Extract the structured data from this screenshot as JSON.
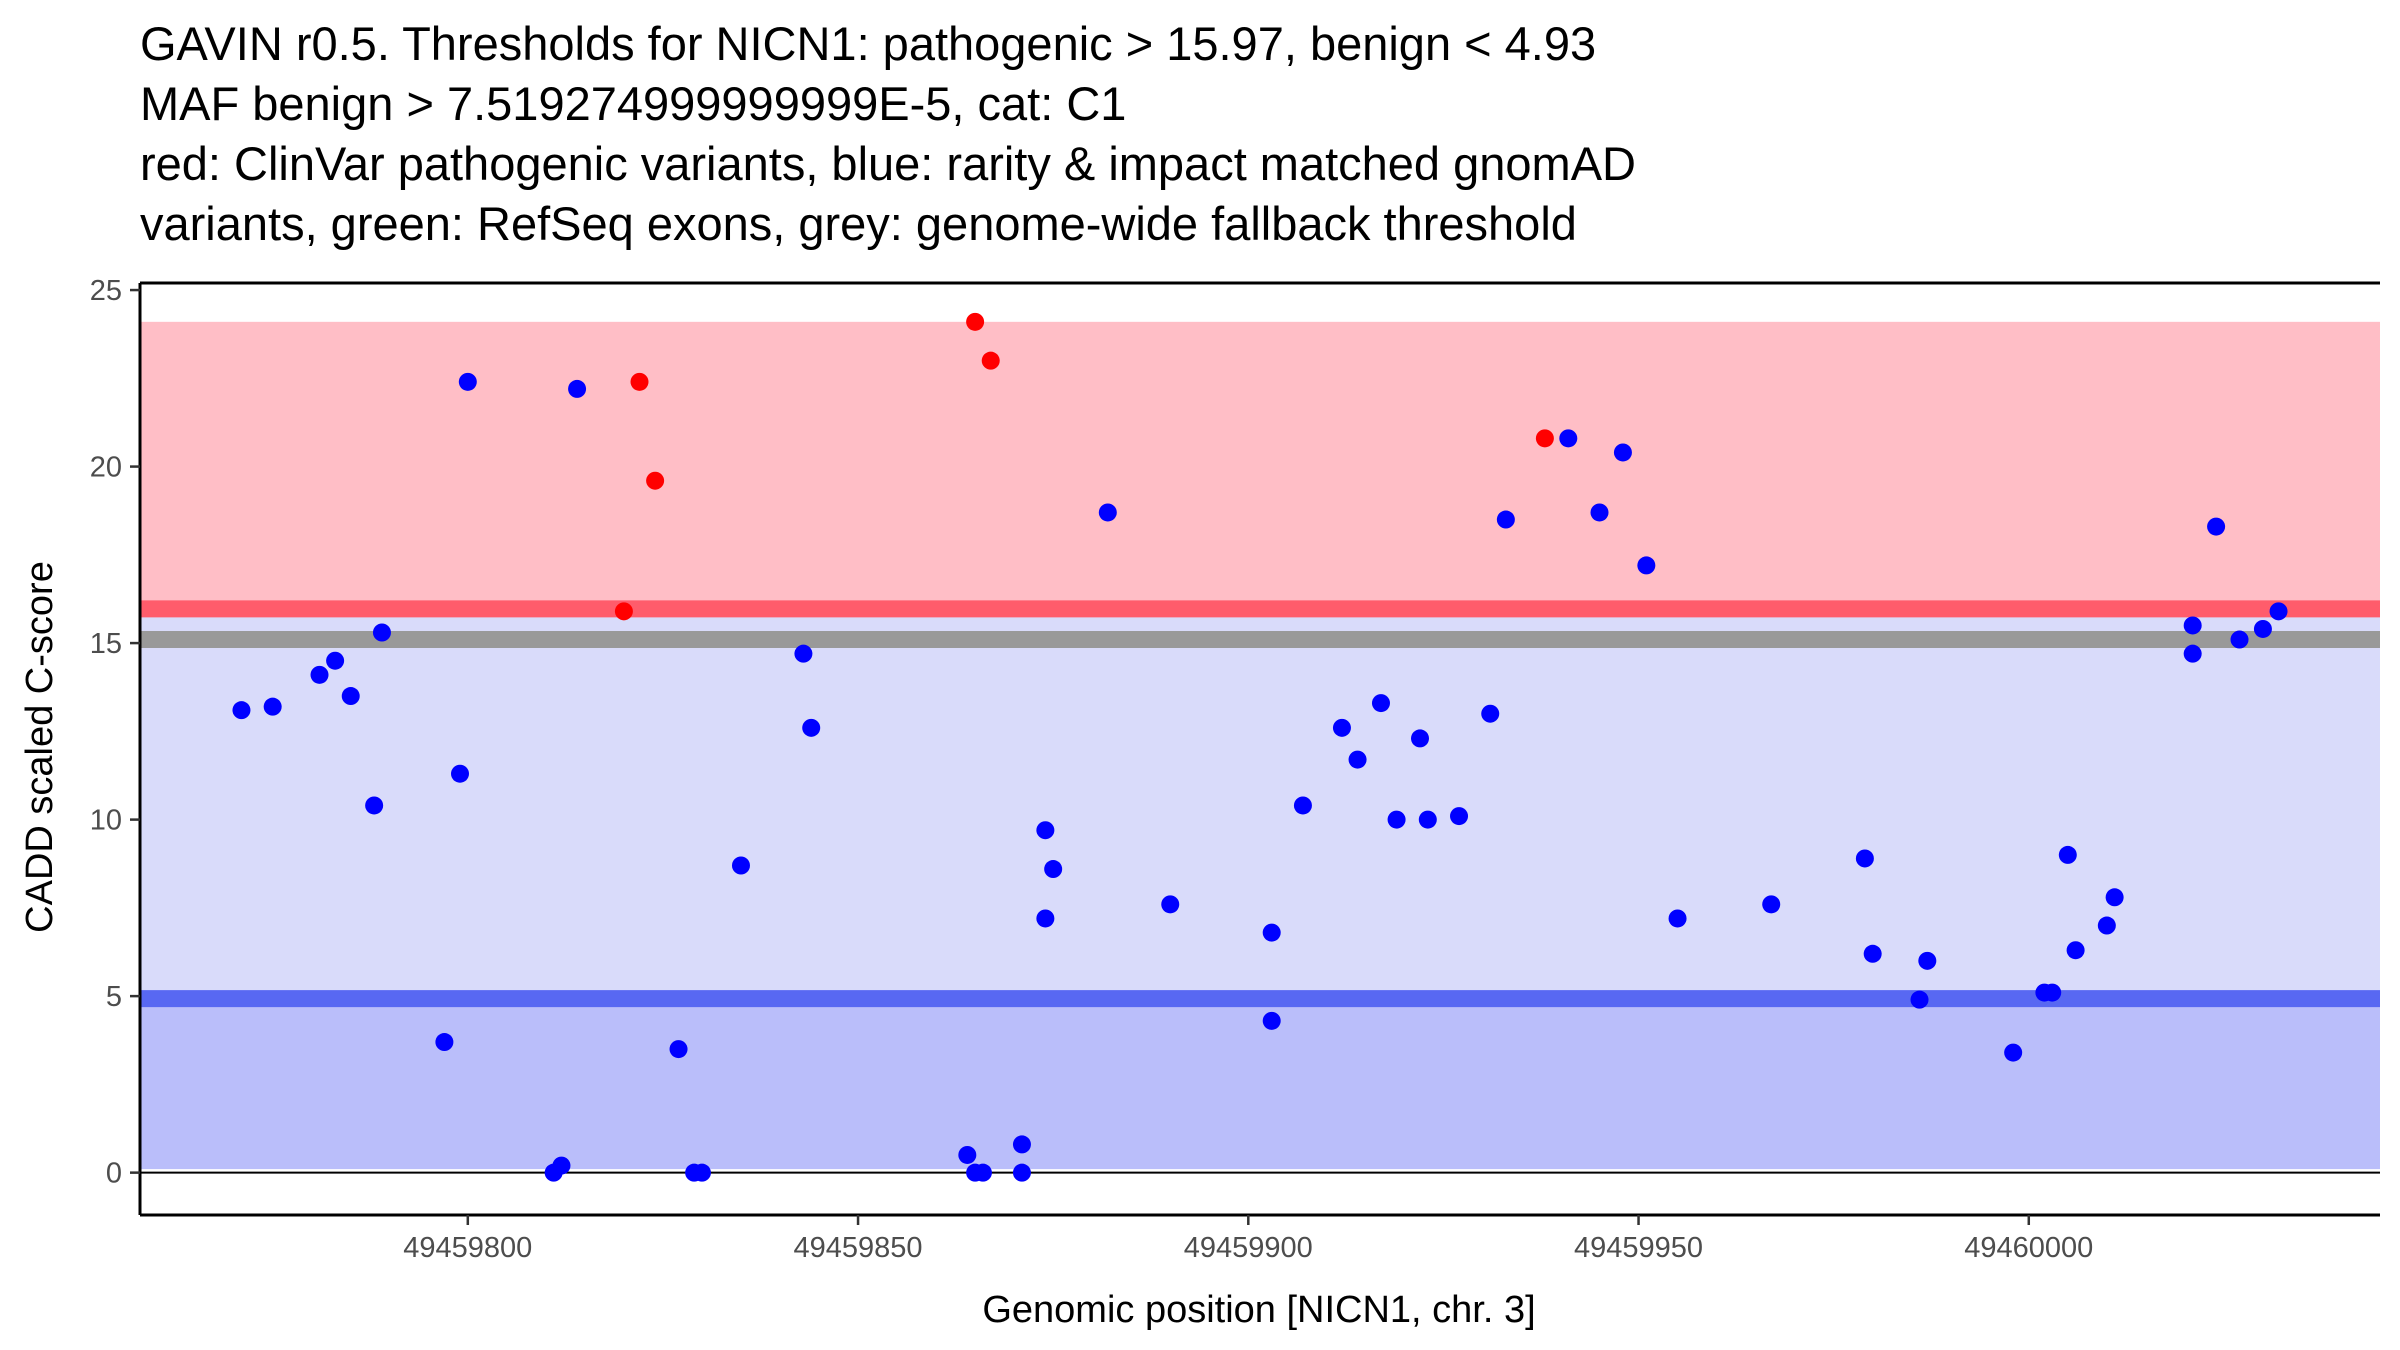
{
  "chart_data": {
    "type": "scatter",
    "title_lines": [
      "GAVIN r0.5. Thresholds for NICN1: pathogenic > 15.97, benign < 4.93",
      "MAF benign > 7.519274999999999E-5, cat: C1",
      "red: ClinVar pathogenic variants, blue: rarity & impact matched gnomAD",
      "variants, green: RefSeq exons, grey: genome-wide fallback threshold"
    ],
    "xlabel": "Genomic position [NICN1, chr. 3]",
    "ylabel": "CADD scaled C-score",
    "xlim": [
      49459758,
      49460045
    ],
    "ylim": [
      -1.2,
      25.2
    ],
    "xticks": [
      49459800,
      49459850,
      49459900,
      49459950,
      49460000
    ],
    "xtick_labels": [
      "49459800",
      "49459850",
      "49459900",
      "49459950",
      "49460000"
    ],
    "yticks": [
      0,
      5,
      10,
      15,
      20,
      25
    ],
    "ytick_labels": [
      "0",
      "5",
      "10",
      "15",
      "20",
      "25"
    ],
    "colors": {
      "pathogenic_band": "#ffbec6",
      "uncertain_band": "#d9dbfa",
      "benign_band": "#babefa",
      "pathogenic_line": "#ff5c6b",
      "benign_line": "#5868f2",
      "fallback_line": "#999999",
      "clinvar_point": "#ff0000",
      "gnomad_point": "#0000ff"
    },
    "bands": [
      {
        "name": "pathogenic",
        "from": 15.97,
        "to": 24.1
      },
      {
        "name": "uncertain",
        "from": 4.93,
        "to": 15.97
      },
      {
        "name": "benign",
        "from": 0.1,
        "to": 4.93
      }
    ],
    "thresholds": [
      {
        "name": "fallback",
        "value": 15.1
      },
      {
        "name": "pathogenic",
        "value": 15.97
      },
      {
        "name": "benign",
        "value": 4.93
      }
    ],
    "series": [
      {
        "name": "ClinVar pathogenic variants",
        "points": [
          {
            "x": 49459820,
            "y": 15.9
          },
          {
            "x": 49459822,
            "y": 22.4
          },
          {
            "x": 49459824,
            "y": 19.6
          },
          {
            "x": 49459865,
            "y": 24.1
          },
          {
            "x": 49459867,
            "y": 23.0
          },
          {
            "x": 49459938,
            "y": 20.8
          }
        ]
      },
      {
        "name": "rarity & impact matched gnomAD variants",
        "points": [
          {
            "x": 49459771,
            "y": 13.1
          },
          {
            "x": 49459775,
            "y": 13.2
          },
          {
            "x": 49459781,
            "y": 14.1
          },
          {
            "x": 49459783,
            "y": 14.5
          },
          {
            "x": 49459785,
            "y": 13.5
          },
          {
            "x": 49459788,
            "y": 10.4
          },
          {
            "x": 49459789,
            "y": 15.3
          },
          {
            "x": 49459797,
            "y": 3.7
          },
          {
            "x": 49459799,
            "y": 11.3
          },
          {
            "x": 49459800,
            "y": 22.4
          },
          {
            "x": 49459811,
            "y": 0.0
          },
          {
            "x": 49459812,
            "y": 0.2
          },
          {
            "x": 49459814,
            "y": 22.2
          },
          {
            "x": 49459827,
            "y": 3.5
          },
          {
            "x": 49459829,
            "y": 0.0
          },
          {
            "x": 49459830,
            "y": 0.0
          },
          {
            "x": 49459835,
            "y": 8.7
          },
          {
            "x": 49459843,
            "y": 14.7
          },
          {
            "x": 49459844,
            "y": 12.6
          },
          {
            "x": 49459864,
            "y": 0.5
          },
          {
            "x": 49459865,
            "y": 0.0
          },
          {
            "x": 49459866,
            "y": 0.0
          },
          {
            "x": 49459871,
            "y": 0.8
          },
          {
            "x": 49459871,
            "y": 0.0
          },
          {
            "x": 49459874,
            "y": 9.7
          },
          {
            "x": 49459874,
            "y": 7.2
          },
          {
            "x": 49459875,
            "y": 8.6
          },
          {
            "x": 49459882,
            "y": 18.7
          },
          {
            "x": 49459890,
            "y": 7.6
          },
          {
            "x": 49459903,
            "y": 6.8
          },
          {
            "x": 49459903,
            "y": 4.3
          },
          {
            "x": 49459907,
            "y": 10.4
          },
          {
            "x": 49459912,
            "y": 12.6
          },
          {
            "x": 49459914,
            "y": 11.7
          },
          {
            "x": 49459917,
            "y": 13.3
          },
          {
            "x": 49459919,
            "y": 10.0
          },
          {
            "x": 49459922,
            "y": 12.3
          },
          {
            "x": 49459923,
            "y": 10.0
          },
          {
            "x": 49459927,
            "y": 10.1
          },
          {
            "x": 49459931,
            "y": 13.0
          },
          {
            "x": 49459933,
            "y": 18.5
          },
          {
            "x": 49459941,
            "y": 20.8
          },
          {
            "x": 49459945,
            "y": 18.7
          },
          {
            "x": 49459948,
            "y": 20.4
          },
          {
            "x": 49459951,
            "y": 17.2
          },
          {
            "x": 49459955,
            "y": 7.2
          },
          {
            "x": 49459967,
            "y": 7.6
          },
          {
            "x": 49459979,
            "y": 8.9
          },
          {
            "x": 49459980,
            "y": 6.2
          },
          {
            "x": 49459986,
            "y": 4.9
          },
          {
            "x": 49459987,
            "y": 6.0
          },
          {
            "x": 49459998,
            "y": 3.4
          },
          {
            "x": 49460002,
            "y": 5.1
          },
          {
            "x": 49460003,
            "y": 5.1
          },
          {
            "x": 49460005,
            "y": 9.0
          },
          {
            "x": 49460006,
            "y": 6.3
          },
          {
            "x": 49460010,
            "y": 7.0
          },
          {
            "x": 49460011,
            "y": 7.8
          },
          {
            "x": 49460021,
            "y": 15.5
          },
          {
            "x": 49460021,
            "y": 14.7
          },
          {
            "x": 49460024,
            "y": 18.3
          },
          {
            "x": 49460027,
            "y": 15.1
          },
          {
            "x": 49460030,
            "y": 15.4
          },
          {
            "x": 49460032,
            "y": 15.9
          }
        ]
      }
    ]
  }
}
